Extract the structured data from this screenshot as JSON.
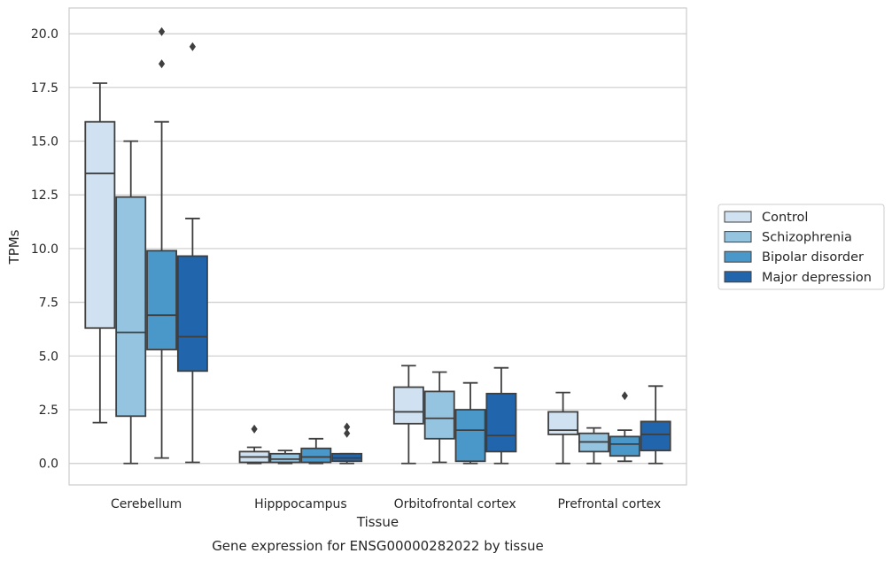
{
  "chart_data": {
    "type": "boxplot",
    "title": "",
    "caption": "Gene expression for ENSG00000282022 by tissue",
    "xlabel": "Tissue",
    "ylabel": "TPMs",
    "ylim": [
      -1,
      21.2
    ],
    "yticks": [
      "0.0",
      "2.5",
      "5.0",
      "7.5",
      "10.0",
      "12.5",
      "15.0",
      "17.5",
      "20.0"
    ],
    "ytick_values": [
      0,
      2.5,
      5,
      7.5,
      10,
      12.5,
      15,
      17.5,
      20
    ],
    "grid": "horizontal",
    "legend_position": "right",
    "categories": [
      "Cerebellum",
      "Hipppocampus",
      "Orbitofrontal cortex",
      "Prefrontal cortex"
    ],
    "series": [
      {
        "name": "Control",
        "color": "#d0e1f2",
        "boxes": [
          {
            "whislo": 1.9,
            "q1": 6.3,
            "med": 13.5,
            "q3": 15.9,
            "whishi": 17.7,
            "fliers": []
          },
          {
            "whislo": 0.0,
            "q1": 0.05,
            "med": 0.3,
            "q3": 0.55,
            "whishi": 0.75,
            "fliers": [
              1.6
            ]
          },
          {
            "whislo": 0.0,
            "q1": 1.85,
            "med": 2.4,
            "q3": 3.55,
            "whishi": 4.55,
            "fliers": []
          },
          {
            "whislo": 0.0,
            "q1": 1.35,
            "med": 1.55,
            "q3": 2.4,
            "whishi": 3.3,
            "fliers": []
          }
        ]
      },
      {
        "name": "Schizophrenia",
        "color": "#94c4df",
        "boxes": [
          {
            "whislo": 0.0,
            "q1": 2.2,
            "med": 6.1,
            "q3": 12.4,
            "whishi": 15.0,
            "fliers": []
          },
          {
            "whislo": 0.0,
            "q1": 0.05,
            "med": 0.2,
            "q3": 0.45,
            "whishi": 0.6,
            "fliers": []
          },
          {
            "whislo": 0.05,
            "q1": 1.15,
            "med": 2.1,
            "q3": 3.35,
            "whishi": 4.25,
            "fliers": []
          },
          {
            "whislo": 0.0,
            "q1": 0.55,
            "med": 1.0,
            "q3": 1.4,
            "whishi": 1.65,
            "fliers": []
          }
        ]
      },
      {
        "name": "Bipolar disorder",
        "color": "#4a98c9",
        "boxes": [
          {
            "whislo": 0.25,
            "q1": 5.3,
            "med": 6.9,
            "q3": 9.9,
            "whishi": 15.9,
            "fliers": [
              18.6,
              20.1
            ]
          },
          {
            "whislo": 0.0,
            "q1": 0.05,
            "med": 0.3,
            "q3": 0.7,
            "whishi": 1.15,
            "fliers": []
          },
          {
            "whislo": 0.0,
            "q1": 0.1,
            "med": 1.55,
            "q3": 2.5,
            "whishi": 3.75,
            "fliers": []
          },
          {
            "whislo": 0.1,
            "q1": 0.35,
            "med": 0.9,
            "q3": 1.25,
            "whishi": 1.55,
            "fliers": [
              3.15
            ]
          }
        ]
      },
      {
        "name": "Major depression",
        "color": "#2166ac",
        "boxes": [
          {
            "whislo": 0.05,
            "q1": 4.3,
            "med": 5.9,
            "q3": 9.65,
            "whishi": 11.4,
            "fliers": [
              19.4
            ]
          },
          {
            "whislo": 0.0,
            "q1": 0.1,
            "med": 0.25,
            "q3": 0.45,
            "whishi": 0.45,
            "fliers": [
              1.4,
              1.7
            ]
          },
          {
            "whislo": 0.0,
            "q1": 0.55,
            "med": 1.3,
            "q3": 3.25,
            "whishi": 4.45,
            "fliers": []
          },
          {
            "whislo": 0.0,
            "q1": 0.6,
            "med": 1.35,
            "q3": 1.95,
            "whishi": 3.6,
            "fliers": []
          }
        ]
      }
    ]
  }
}
